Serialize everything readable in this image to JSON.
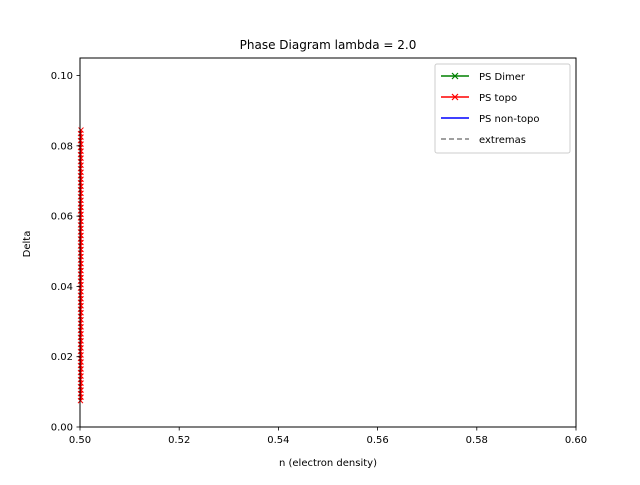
{
  "chart_data": {
    "type": "line",
    "title": "Phase Diagram lambda = 2.0",
    "xlabel": "n (electron density)",
    "ylabel": "Delta",
    "xlim": [
      0.5,
      0.6
    ],
    "ylim": [
      0.0,
      0.105
    ],
    "x_ticks": [
      "0.50",
      "0.52",
      "0.54",
      "0.56",
      "0.58",
      "0.60"
    ],
    "y_ticks": [
      "0.00",
      "0.02",
      "0.04",
      "0.06",
      "0.08",
      "0.10"
    ],
    "x_tick_values": [
      0.5,
      0.52,
      0.54,
      0.56,
      0.58,
      0.6
    ],
    "y_tick_values": [
      0.0,
      0.02,
      0.04,
      0.06,
      0.08,
      0.1
    ],
    "grid": false,
    "legend_position": "top-right",
    "series": [
      {
        "name": "PS Dimer",
        "color": "#008000",
        "style": "solid-marker-x",
        "x": [],
        "y": []
      },
      {
        "name": "PS topo",
        "color": "#ff0000",
        "style": "solid-marker-x",
        "x": [
          0.5001,
          0.5002,
          0.5001,
          0.5002,
          0.5001,
          0.5002,
          0.5001,
          0.5002,
          0.5001,
          0.5002,
          0.5001,
          0.5002,
          0.5001,
          0.5002,
          0.5001,
          0.5002,
          0.5001,
          0.5002,
          0.5001,
          0.5002,
          0.5001,
          0.5002,
          0.5001,
          0.5002,
          0.5001,
          0.5002,
          0.5001,
          0.5002,
          0.5001,
          0.5002,
          0.5001,
          0.5002,
          0.5001,
          0.5002,
          0.5001,
          0.5002,
          0.5001,
          0.5002,
          0.5001,
          0.5002,
          0.5001,
          0.5002,
          0.5001,
          0.5002,
          0.5001,
          0.5002,
          0.5001,
          0.5002,
          0.5001,
          0.5002,
          0.5001,
          0.5002,
          0.5001,
          0.5002,
          0.5001,
          0.5002,
          0.5001,
          0.5002,
          0.5001,
          0.5002,
          0.5001,
          0.5002,
          0.5001,
          0.5002,
          0.5001,
          0.5002,
          0.5001,
          0.5002,
          0.5001,
          0.5002,
          0.5001,
          0.5002,
          0.5001,
          0.5002,
          0.5001,
          0.5002,
          0.5001,
          0.5002
        ],
        "y": [
          0.0075,
          0.0085,
          0.0095,
          0.0105,
          0.0115,
          0.0125,
          0.0135,
          0.0145,
          0.0155,
          0.0165,
          0.0175,
          0.0185,
          0.0195,
          0.0205,
          0.0215,
          0.0225,
          0.0235,
          0.0245,
          0.0255,
          0.0265,
          0.0275,
          0.0285,
          0.0295,
          0.0305,
          0.0315,
          0.0325,
          0.0335,
          0.0345,
          0.0355,
          0.0365,
          0.0375,
          0.0385,
          0.0395,
          0.0405,
          0.0415,
          0.0425,
          0.0435,
          0.0445,
          0.0455,
          0.0465,
          0.0475,
          0.0485,
          0.0495,
          0.0505,
          0.0515,
          0.0525,
          0.0535,
          0.0545,
          0.0555,
          0.0565,
          0.0575,
          0.0585,
          0.0595,
          0.0605,
          0.0615,
          0.0625,
          0.0635,
          0.0645,
          0.0655,
          0.0665,
          0.0675,
          0.0685,
          0.0695,
          0.0705,
          0.0715,
          0.0725,
          0.0735,
          0.0745,
          0.0755,
          0.0765,
          0.0775,
          0.0785,
          0.0795,
          0.0805,
          0.0815,
          0.0825,
          0.0835,
          0.0845
        ]
      },
      {
        "name": "PS non-topo",
        "color": "#0000ff",
        "style": "solid",
        "x": [],
        "y": []
      },
      {
        "name": "extremas",
        "color": "#808080",
        "style": "dashed",
        "x": [],
        "y": []
      }
    ]
  }
}
